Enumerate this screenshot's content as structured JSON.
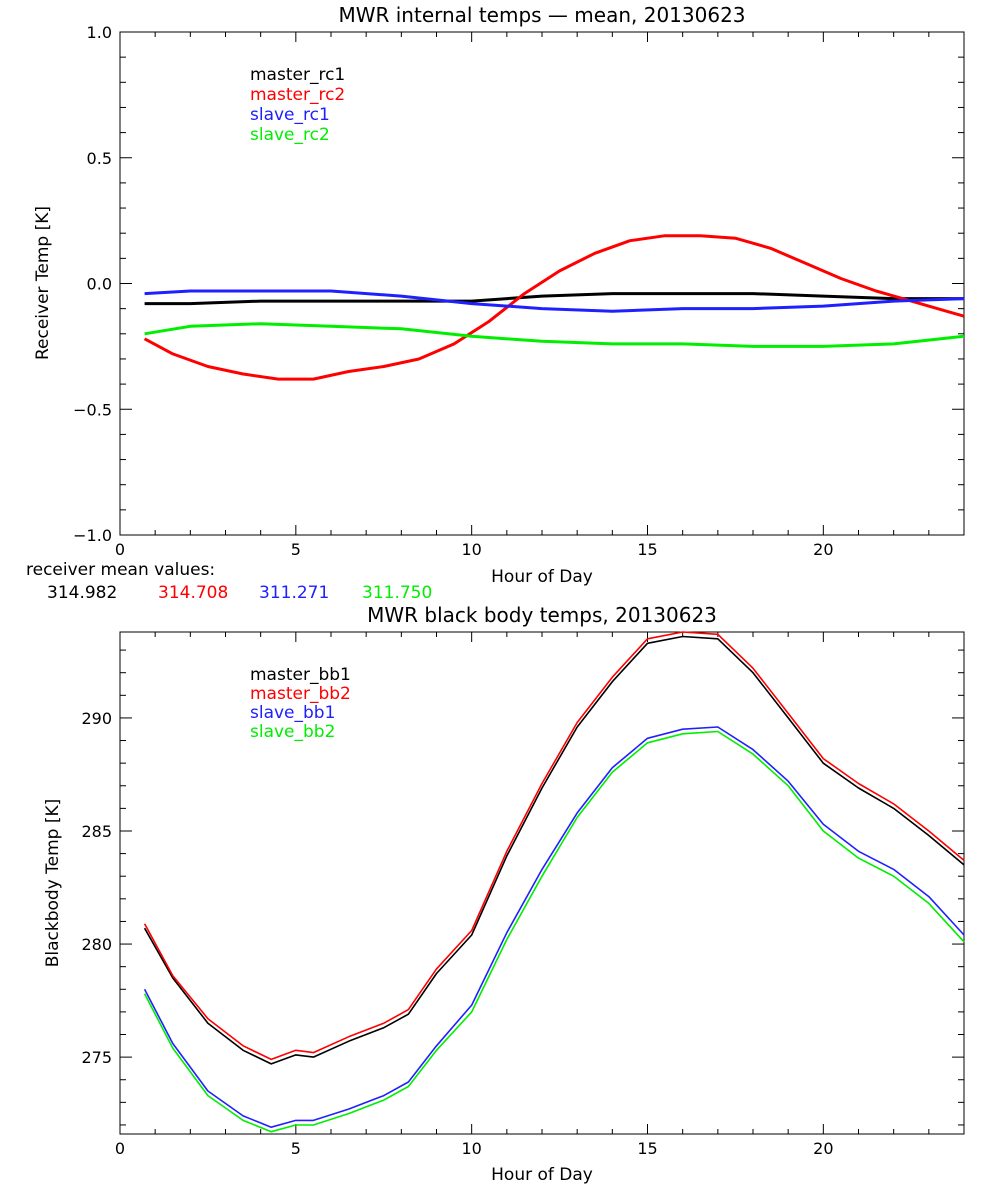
{
  "colors": {
    "master_rc1": "#000000",
    "master_rc2": "#ff0000",
    "slave_rc1": "#2020ff",
    "slave_rc2": "#00ee00"
  },
  "receiver_mean": {
    "label": "receiver mean values:",
    "values": [
      {
        "text": "314.982",
        "color": "#000000"
      },
      {
        "text": "314.708",
        "color": "#ff0000"
      },
      {
        "text": "311.271",
        "color": "#2020ff"
      },
      {
        "text": "311.750",
        "color": "#00ee00"
      }
    ]
  },
  "chart_data": [
    {
      "type": "line",
      "title": "MWR internal temps — mean, 20130623",
      "xlabel": "Hour of Day",
      "ylabel": "Receiver Temp [K]",
      "xlim": [
        0,
        24
      ],
      "ylim": [
        -1.0,
        1.0
      ],
      "xticks": [
        0,
        5,
        10,
        15,
        20
      ],
      "xtick_labels": [
        "0",
        "5",
        "10",
        "15",
        "20"
      ],
      "yticks": [
        -1.0,
        -0.5,
        0.0,
        0.5,
        1.0
      ],
      "ytick_labels": [
        "−1.0",
        "−0.5",
        "0.0",
        "0.5",
        "1.0"
      ],
      "grid": false,
      "legend_position": "top-left",
      "series": [
        {
          "name": "master_rc1",
          "color": "#000000",
          "x": [
            0.7,
            2,
            4,
            6,
            8,
            10,
            12,
            14,
            16,
            18,
            20,
            22,
            24
          ],
          "y": [
            -0.08,
            -0.08,
            -0.07,
            -0.07,
            -0.07,
            -0.07,
            -0.05,
            -0.04,
            -0.04,
            -0.04,
            -0.05,
            -0.06,
            -0.06
          ]
        },
        {
          "name": "master_rc2",
          "color": "#ff0000",
          "x": [
            0.7,
            1.5,
            2.5,
            3.5,
            4.5,
            5.5,
            6.5,
            7.5,
            8.5,
            9.5,
            10.5,
            11.5,
            12.5,
            13.5,
            14.5,
            15.5,
            16.5,
            17.5,
            18.5,
            19.5,
            20.5,
            21.5,
            22.5,
            23.5,
            24
          ],
          "y": [
            -0.22,
            -0.28,
            -0.33,
            -0.36,
            -0.38,
            -0.38,
            -0.35,
            -0.33,
            -0.3,
            -0.24,
            -0.15,
            -0.04,
            0.05,
            0.12,
            0.17,
            0.19,
            0.19,
            0.18,
            0.14,
            0.08,
            0.02,
            -0.03,
            -0.07,
            -0.11,
            -0.13
          ]
        },
        {
          "name": "slave_rc1",
          "color": "#2020ff",
          "x": [
            0.7,
            2,
            4,
            6,
            8,
            10,
            12,
            14,
            16,
            18,
            20,
            22,
            24
          ],
          "y": [
            -0.04,
            -0.03,
            -0.03,
            -0.03,
            -0.05,
            -0.08,
            -0.1,
            -0.11,
            -0.1,
            -0.1,
            -0.09,
            -0.07,
            -0.06
          ]
        },
        {
          "name": "slave_rc2",
          "color": "#00ee00",
          "x": [
            0.7,
            2,
            4,
            6,
            8,
            10,
            12,
            14,
            16,
            18,
            20,
            22,
            24
          ],
          "y": [
            -0.2,
            -0.17,
            -0.16,
            -0.17,
            -0.18,
            -0.21,
            -0.23,
            -0.24,
            -0.24,
            -0.25,
            -0.25,
            -0.24,
            -0.21
          ]
        }
      ]
    },
    {
      "type": "line",
      "title": "MWR black body temps, 20130623",
      "xlabel": "Hour of Day",
      "ylabel": "Blackbody Temp [K]",
      "xlim": [
        0,
        24
      ],
      "ylim": [
        271.6,
        293.8
      ],
      "xticks": [
        0,
        5,
        10,
        15,
        20
      ],
      "xtick_labels": [
        "0",
        "5",
        "10",
        "15",
        "20"
      ],
      "yticks": [
        275,
        280,
        285,
        290
      ],
      "ytick_labels": [
        "275",
        "280",
        "285",
        "290"
      ],
      "grid": false,
      "legend_position": "top-left",
      "series": [
        {
          "name": "master_bb1",
          "color": "#000000",
          "x": [
            0.7,
            1.5,
            2.5,
            3.5,
            4.3,
            5.0,
            5.5,
            6.5,
            7.5,
            8.2,
            9.0,
            10.0,
            11.0,
            12.0,
            13.0,
            14.0,
            15.0,
            16.0,
            17.0,
            18.0,
            19.0,
            20.0,
            21.0,
            22.0,
            23.0,
            24.0
          ],
          "y": [
            280.7,
            278.5,
            276.5,
            275.3,
            274.7,
            275.1,
            275.0,
            275.7,
            276.3,
            276.9,
            278.7,
            280.4,
            283.9,
            286.9,
            289.6,
            291.6,
            293.3,
            293.6,
            293.5,
            292.0,
            290.0,
            288.0,
            286.9,
            286.0,
            284.8,
            283.5
          ]
        },
        {
          "name": "master_bb2",
          "color": "#ff0000",
          "x": [
            0.7,
            1.5,
            2.5,
            3.5,
            4.3,
            5.0,
            5.5,
            6.5,
            7.5,
            8.2,
            9.0,
            10.0,
            11.0,
            12.0,
            13.0,
            14.0,
            15.0,
            16.0,
            17.0,
            18.0,
            19.0,
            20.0,
            21.0,
            22.0,
            23.0,
            24.0
          ],
          "y": [
            280.9,
            278.6,
            276.7,
            275.5,
            274.9,
            275.3,
            275.2,
            275.9,
            276.5,
            277.1,
            278.9,
            280.6,
            284.1,
            287.1,
            289.8,
            291.8,
            293.5,
            293.8,
            293.7,
            292.2,
            290.2,
            288.2,
            287.1,
            286.2,
            285.0,
            283.7
          ]
        },
        {
          "name": "slave_bb1",
          "color": "#2020ff",
          "x": [
            0.7,
            1.5,
            2.5,
            3.5,
            4.3,
            5.0,
            5.5,
            6.5,
            7.5,
            8.2,
            9.0,
            10.0,
            11.0,
            12.0,
            13.0,
            14.0,
            15.0,
            16.0,
            17.0,
            18.0,
            19.0,
            20.0,
            21.0,
            22.0,
            23.0,
            24.0
          ],
          "y": [
            278.0,
            275.6,
            273.5,
            272.4,
            271.9,
            272.2,
            272.2,
            272.7,
            273.3,
            273.9,
            275.5,
            277.3,
            280.5,
            283.3,
            285.8,
            287.8,
            289.1,
            289.5,
            289.6,
            288.6,
            287.2,
            285.3,
            284.1,
            283.3,
            282.1,
            280.4
          ]
        },
        {
          "name": "slave_bb2",
          "color": "#00ee00",
          "x": [
            0.7,
            1.5,
            2.5,
            3.5,
            4.3,
            5.0,
            5.5,
            6.5,
            7.5,
            8.2,
            9.0,
            10.0,
            11.0,
            12.0,
            13.0,
            14.0,
            15.0,
            16.0,
            17.0,
            18.0,
            19.0,
            20.0,
            21.0,
            22.0,
            23.0,
            24.0
          ],
          "y": [
            277.8,
            275.4,
            273.3,
            272.2,
            271.7,
            272.0,
            272.0,
            272.5,
            273.1,
            273.7,
            275.3,
            277.0,
            280.2,
            283.0,
            285.6,
            287.6,
            288.9,
            289.3,
            289.4,
            288.4,
            287.0,
            285.0,
            283.8,
            283.0,
            281.8,
            280.1
          ]
        }
      ]
    }
  ]
}
